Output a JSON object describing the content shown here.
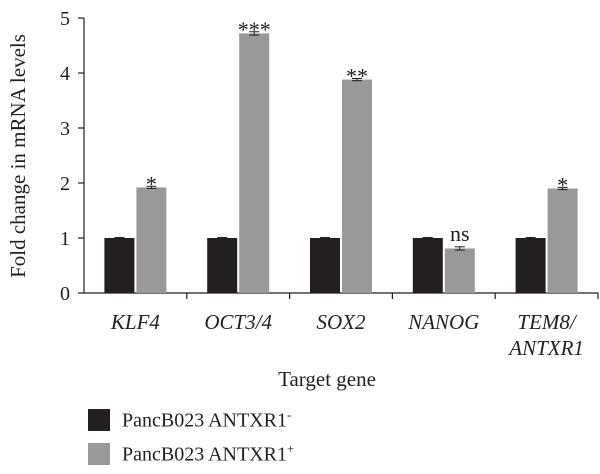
{
  "chart_data": {
    "type": "bar",
    "xlabel": "Target gene",
    "ylabel": "Fold change in mRNA levels",
    "ylim": [
      0,
      5
    ],
    "yticks": [
      "0",
      "1",
      "2",
      "3",
      "4",
      "5"
    ],
    "categories": [
      {
        "lines": [
          "KLF4"
        ]
      },
      {
        "lines": [
          "OCT3/4"
        ]
      },
      {
        "lines": [
          "SOX2"
        ]
      },
      {
        "lines": [
          "NANOG"
        ]
      },
      {
        "lines": [
          "TEM8/",
          "ANTXR1"
        ]
      }
    ],
    "series": [
      {
        "name": "PancB023 ANTXR1",
        "sign": "-",
        "color": "#231f20",
        "values": [
          1.0,
          1.0,
          1.0,
          1.0,
          1.0
        ],
        "errors": [
          0.01,
          0.01,
          0.01,
          0.01,
          0.01
        ]
      },
      {
        "name": "PancB023 ANTXR1",
        "sign": "+",
        "color": "#999999",
        "values": [
          1.92,
          4.72,
          3.88,
          0.81,
          1.9
        ],
        "errors": [
          0.02,
          0.03,
          0.02,
          0.03,
          0.02
        ]
      }
    ],
    "significance": [
      "*",
      "***",
      "**",
      "ns",
      "*"
    ],
    "legend_position": "bottom-left",
    "grid": false
  }
}
